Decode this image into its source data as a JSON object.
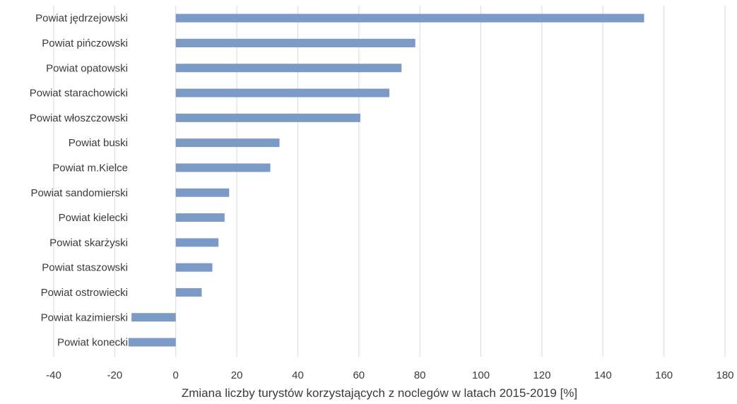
{
  "chart_data": {
    "type": "bar",
    "orientation": "horizontal",
    "categories": [
      "Powiat jędrzejowski",
      "Powiat pińczowski",
      "Powiat opatowski",
      "Powiat starachowicki",
      "Powiat włoszczowski",
      "Powiat buski",
      "Powiat m.Kielce",
      "Powiat sandomierski",
      "Powiat kielecki",
      "Powiat skarżyski",
      "Powiat staszowski",
      "Powiat ostrowiecki",
      "Powiat kazimierski",
      "Powiat konecki"
    ],
    "values": [
      153.5,
      78.5,
      74,
      70,
      60.5,
      34,
      31,
      17.5,
      16,
      14,
      12,
      8.5,
      -14.5,
      -15.5
    ],
    "xlabel": "Zmiana liczby turystów korzystających z noclegów w latach 2015-2019 [%]",
    "ylabel": "",
    "xlim": [
      -40,
      180
    ],
    "xticks": [
      "-40",
      "-20",
      "0",
      "20",
      "40",
      "60",
      "80",
      "100",
      "120",
      "140",
      "160",
      "180"
    ],
    "grid": "vertical",
    "legend": "none",
    "bar_color": "#7b9ac6"
  }
}
